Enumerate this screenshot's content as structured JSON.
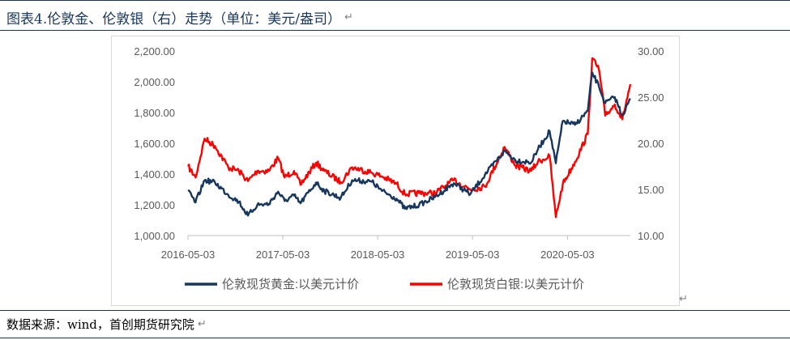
{
  "figure": {
    "caption": "图表4.伦敦金、伦敦银（右）走势（单位：美元/盎司）",
    "return_mark": "↵",
    "para_mark": "↵"
  },
  "source": {
    "text": "数据来源：wind，首创期货研究院",
    "return_mark": "↵"
  },
  "colors": {
    "gold": "#17375e",
    "silver": "#ff0000",
    "rule": "#17365d"
  },
  "chart_data": {
    "type": "line",
    "title": "",
    "x_ticks": [
      "2016-05-03",
      "2017-05-03",
      "2018-05-03",
      "2019-05-03",
      "2020-05-03"
    ],
    "x_range": [
      "2016-05-03",
      "2020-12-31"
    ],
    "y_left": {
      "min": 1000,
      "max": 2200,
      "ticks": [
        "1,000.00",
        "1,200.00",
        "1,400.00",
        "1,600.00",
        "1,800.00",
        "2,000.00",
        "2,200.00"
      ]
    },
    "y_right": {
      "min": 10,
      "max": 30,
      "ticks": [
        "10.00",
        "15.00",
        "20.00",
        "25.00",
        "30.00"
      ]
    },
    "grid": false,
    "legend_position": "bottom",
    "series": [
      {
        "name": "伦敦现货黄金:以美元计价",
        "axis": "left",
        "points": [
          [
            "2016-05-03",
            1290
          ],
          [
            "2016-06-01",
            1215
          ],
          [
            "2016-07-06",
            1360
          ],
          [
            "2016-08-15",
            1345
          ],
          [
            "2016-10-05",
            1265
          ],
          [
            "2016-11-15",
            1220
          ],
          [
            "2016-12-20",
            1130
          ],
          [
            "2017-01-25",
            1200
          ],
          [
            "2017-03-10",
            1205
          ],
          [
            "2017-04-15",
            1285
          ],
          [
            "2017-05-10",
            1225
          ],
          [
            "2017-06-15",
            1260
          ],
          [
            "2017-07-10",
            1210
          ],
          [
            "2017-09-08",
            1345
          ],
          [
            "2017-10-10",
            1290
          ],
          [
            "2017-12-12",
            1245
          ],
          [
            "2018-01-25",
            1360
          ],
          [
            "2018-04-11",
            1350
          ],
          [
            "2018-05-20",
            1290
          ],
          [
            "2018-07-15",
            1240
          ],
          [
            "2018-08-16",
            1175
          ],
          [
            "2018-10-10",
            1200
          ],
          [
            "2018-12-10",
            1250
          ],
          [
            "2019-02-20",
            1340
          ],
          [
            "2019-04-25",
            1270
          ],
          [
            "2019-06-20",
            1395
          ],
          [
            "2019-09-04",
            1550
          ],
          [
            "2019-10-15",
            1490
          ],
          [
            "2019-12-15",
            1475
          ],
          [
            "2020-01-10",
            1560
          ],
          [
            "2020-02-24",
            1680
          ],
          [
            "2020-03-19",
            1470
          ],
          [
            "2020-04-15",
            1745
          ],
          [
            "2020-06-01",
            1720
          ],
          [
            "2020-07-20",
            1810
          ],
          [
            "2020-08-06",
            2060
          ],
          [
            "2020-09-01",
            1970
          ],
          [
            "2020-09-25",
            1860
          ],
          [
            "2020-11-01",
            1900
          ],
          [
            "2020-11-30",
            1780
          ],
          [
            "2020-12-31",
            1890
          ]
        ]
      },
      {
        "name": "伦敦现货白银:以美元计价",
        "axis": "right",
        "points": [
          [
            "2016-05-03",
            17.5
          ],
          [
            "2016-06-01",
            16.3
          ],
          [
            "2016-07-06",
            20.5
          ],
          [
            "2016-08-15",
            19.7
          ],
          [
            "2016-10-05",
            17.4
          ],
          [
            "2016-11-15",
            17.0
          ],
          [
            "2016-12-20",
            15.9
          ],
          [
            "2017-01-25",
            17.0
          ],
          [
            "2017-03-10",
            17.0
          ],
          [
            "2017-04-15",
            18.4
          ],
          [
            "2017-05-10",
            16.3
          ],
          [
            "2017-06-15",
            17.0
          ],
          [
            "2017-07-10",
            15.5
          ],
          [
            "2017-09-08",
            17.9
          ],
          [
            "2017-10-10",
            17.0
          ],
          [
            "2017-12-12",
            15.8
          ],
          [
            "2018-01-25",
            17.4
          ],
          [
            "2018-04-11",
            16.8
          ],
          [
            "2018-05-20",
            16.4
          ],
          [
            "2018-07-15",
            15.6
          ],
          [
            "2018-08-16",
            14.5
          ],
          [
            "2018-10-10",
            14.6
          ],
          [
            "2018-12-10",
            14.6
          ],
          [
            "2019-02-20",
            16.0
          ],
          [
            "2019-04-25",
            15.0
          ],
          [
            "2019-06-20",
            15.3
          ],
          [
            "2019-09-04",
            19.6
          ],
          [
            "2019-10-15",
            17.6
          ],
          [
            "2019-12-15",
            17.0
          ],
          [
            "2020-01-10",
            18.0
          ],
          [
            "2020-02-24",
            18.6
          ],
          [
            "2020-03-19",
            12.0
          ],
          [
            "2020-04-15",
            15.6
          ],
          [
            "2020-06-01",
            18.0
          ],
          [
            "2020-07-20",
            21.0
          ],
          [
            "2020-08-06",
            29.2
          ],
          [
            "2020-09-01",
            28.0
          ],
          [
            "2020-09-25",
            23.0
          ],
          [
            "2020-11-01",
            24.2
          ],
          [
            "2020-11-30",
            22.6
          ],
          [
            "2020-12-31",
            26.4
          ]
        ]
      }
    ]
  }
}
